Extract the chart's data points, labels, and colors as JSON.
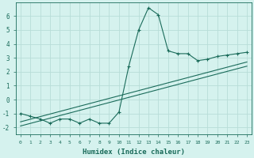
{
  "xlabel": "Humidex (Indice chaleur)",
  "bg_color": "#d5f2ee",
  "line_color": "#1a6b5a",
  "grid_color": "#b8ddd8",
  "xlim": [
    -0.5,
    23.5
  ],
  "ylim": [
    -2.5,
    7.0
  ],
  "yticks": [
    -2,
    -1,
    0,
    1,
    2,
    3,
    4,
    5,
    6
  ],
  "xticks": [
    0,
    1,
    2,
    3,
    4,
    5,
    6,
    7,
    8,
    9,
    10,
    11,
    12,
    13,
    14,
    15,
    16,
    17,
    18,
    19,
    20,
    21,
    22,
    23
  ],
  "curve1_x": [
    0,
    1,
    2,
    3,
    4,
    5,
    6,
    7,
    8,
    9,
    10,
    11,
    12,
    13,
    14,
    15,
    16,
    17,
    18,
    19,
    20,
    21,
    22,
    23
  ],
  "curve1_y": [
    -1.0,
    -1.2,
    -1.4,
    -1.7,
    -1.4,
    -1.4,
    -1.7,
    -1.4,
    -1.7,
    -1.7,
    -0.9,
    2.4,
    5.0,
    6.6,
    6.1,
    3.5,
    3.3,
    3.3,
    2.8,
    2.9,
    3.1,
    3.2,
    3.3,
    3.4
  ],
  "line1_x": [
    0,
    23
  ],
  "line1_y": [
    -1.6,
    2.7
  ],
  "line2_x": [
    0,
    23
  ],
  "line2_y": [
    -1.9,
    2.4
  ]
}
